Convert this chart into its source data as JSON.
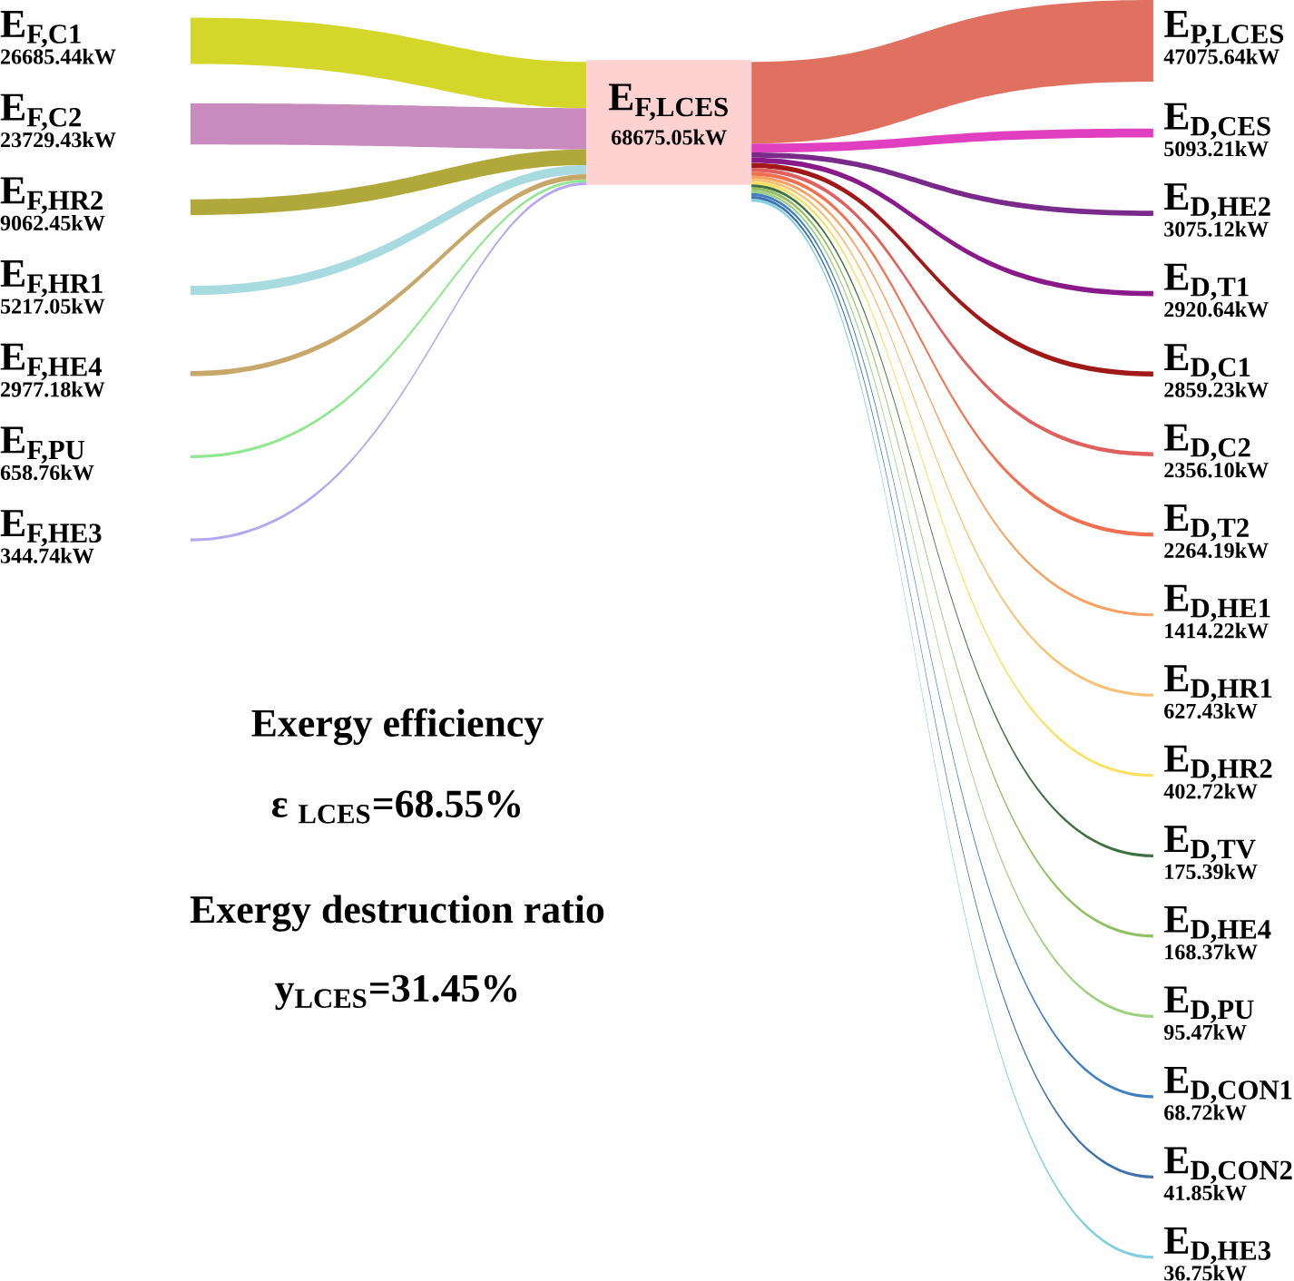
{
  "chart_data": {
    "type": "other",
    "categories": [
      "E$_{F,C1}$",
      "E$_{F,C2}$",
      "E$_{F,HR2}$",
      "E$_{F,HR1}$",
      "E$_{F,HE4}$",
      "E$_{F,PU}$",
      "E$_{F,HE3}$",
      "E$_{P,LCES}$",
      "E$_{D,CES}$",
      "E$_{D,HE2}$",
      "E$_{D,T1}$",
      "E$_{D,C1}$",
      "E$_{D,C2}$",
      "E$_{D,T2}$",
      "E$_{D,HE1}$",
      "E$_{D,HR1}$",
      "E$_{D,HR2}$",
      "E$_{D,TV}$",
      "E$_{D,HE4}$",
      "E$_{D,PU}$",
      "E$_{D,CON1}$",
      "E$_{D,CON2}$",
      "E$_{D,HE3}$"
    ],
    "series": [
      {
        "values": [
          26685.44,
          23729.43,
          9062.45,
          5217.05,
          2977.18,
          658.76,
          344.74,
          null,
          null,
          null,
          null,
          null,
          null,
          null,
          null,
          null,
          null,
          null,
          null,
          null,
          null,
          null,
          null
        ],
        "value_labels": [
          "26685.44kW",
          "23729.43kW",
          "9062.45kW",
          "5217.05kW",
          "2977.18kW",
          "658.76kW",
          "344.74kW",
          null,
          null,
          null,
          null,
          null,
          null,
          null,
          null,
          null,
          null,
          null,
          null,
          null,
          null,
          null,
          null
        ]
      },
      {
        "values": [
          null,
          null,
          null,
          null,
          null,
          null,
          null,
          47075.64,
          5093.21,
          3075.12,
          2920.64,
          2859.23,
          2356.1,
          2264.19,
          1414.22,
          627.43,
          402.72,
          175.39,
          168.37,
          95.47,
          68.72,
          41.85,
          36.75
        ],
        "value_labels": [
          null,
          null,
          null,
          null,
          null,
          null,
          null,
          "47075.64kW",
          "5093.21kW",
          "3075.12kW",
          "2920.64kW",
          "2859.23kW",
          "2356.10kW",
          "2264.19kW",
          "1414.22kW",
          "627.43kW",
          "402.72kW",
          "175.39kW",
          "168.37kW",
          "95.47kW",
          "68.72kW",
          "41.85kW",
          "36.75kW"
        ]
      }
    ],
    "colors": [
      "#d4d62a",
      "#c98bbd",
      "#b0a83a",
      "#a8dbe0",
      "#c8a86a",
      "#8fe88f",
      "#b4a8f0",
      "#e07060",
      "#e040c0",
      "#7a2a8a",
      "#8a1a8a",
      "#a01818",
      "#e06060",
      "#f07050",
      "#f8a060",
      "#f8c070",
      "#f8e060",
      "#407040",
      "#90c060",
      "#a0d080",
      "#4080c0",
      "#4070b0",
      "#80d0e0"
    ],
    "annotations": [
      "E$_{F,LCES}$",
      "68675.05kW",
      "Exergy efficiency",
      "ε $_{LCES}$=68.55%",
      "Exergy destruction ratio",
      "y$_{LCES}$=31.45%"
    ]
  }
}
